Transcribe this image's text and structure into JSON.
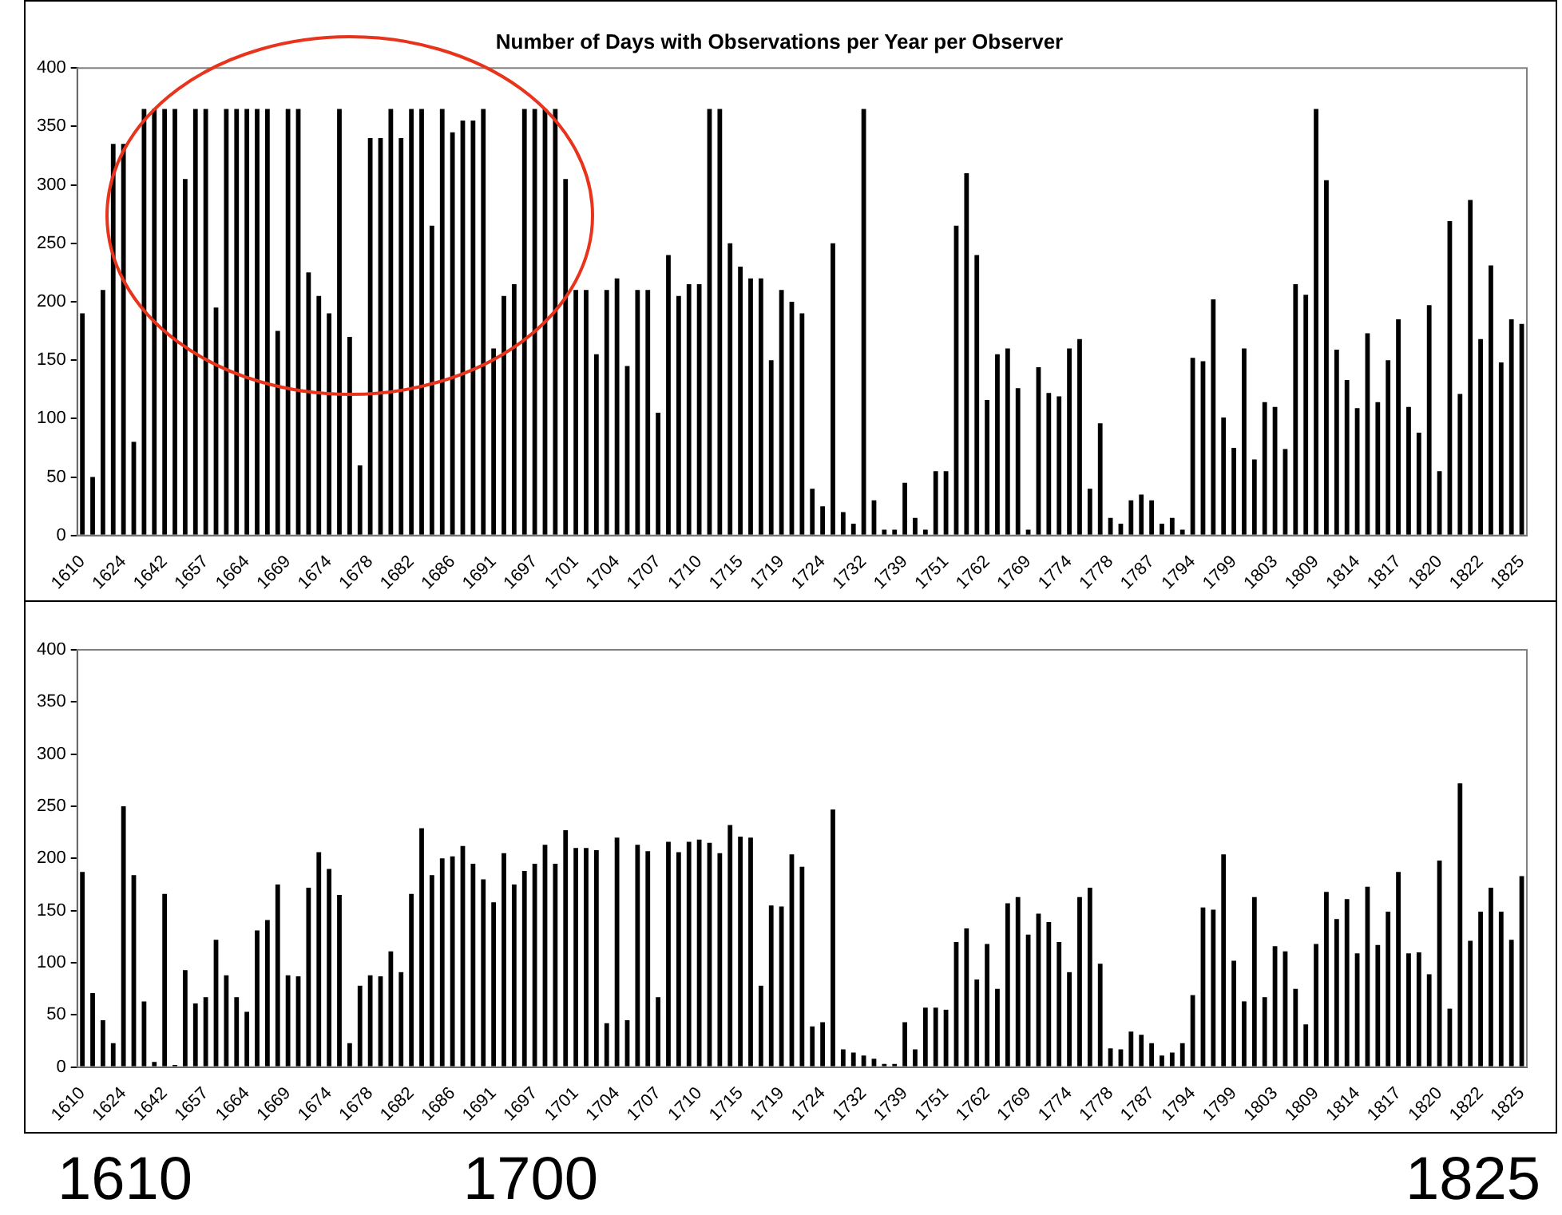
{
  "chart_data": [
    {
      "type": "bar",
      "title": "Number of Days with Observations per Year per Observer",
      "categories": [
        "1610",
        null,
        null,
        null,
        "1624",
        null,
        null,
        null,
        "1642",
        null,
        null,
        null,
        "1657",
        null,
        null,
        null,
        "1664",
        null,
        null,
        null,
        "1669",
        null,
        null,
        null,
        "1674",
        null,
        null,
        null,
        "1678",
        null,
        null,
        null,
        "1682",
        null,
        null,
        null,
        "1686",
        null,
        null,
        null,
        "1691",
        null,
        null,
        null,
        "1697",
        null,
        null,
        null,
        "1701",
        null,
        null,
        null,
        "1704",
        null,
        null,
        null,
        "1707",
        null,
        null,
        null,
        "1710",
        null,
        null,
        null,
        "1715",
        null,
        null,
        null,
        "1719",
        null,
        null,
        null,
        "1724",
        null,
        null,
        null,
        "1732",
        null,
        null,
        null,
        "1739",
        null,
        null,
        null,
        "1751",
        null,
        null,
        null,
        "1762",
        null,
        null,
        null,
        "1769",
        null,
        null,
        null,
        "1774",
        null,
        null,
        null,
        "1778",
        null,
        null,
        null,
        "1787",
        null,
        null,
        null,
        "1794",
        null,
        null,
        null,
        "1799",
        null,
        null,
        null,
        "1803",
        null,
        null,
        null,
        "1809",
        null,
        null,
        null,
        "1814",
        null,
        null,
        null,
        "1817",
        null,
        null,
        null,
        "1820",
        null,
        null,
        null,
        "1822",
        null,
        null,
        null,
        "1825"
      ],
      "values": [
        190,
        50,
        210,
        335,
        335,
        80,
        365,
        365,
        365,
        365,
        305,
        365,
        365,
        195,
        365,
        365,
        365,
        365,
        365,
        175,
        365,
        365,
        225,
        205,
        190,
        365,
        170,
        60,
        340,
        340,
        365,
        340,
        365,
        365,
        265,
        365,
        345,
        355,
        355,
        365,
        160,
        205,
        215,
        365,
        365,
        365,
        365,
        305,
        210,
        210,
        155,
        210,
        220,
        145,
        210,
        210,
        105,
        240,
        205,
        215,
        215,
        365,
        365,
        250,
        230,
        220,
        220,
        150,
        210,
        200,
        190,
        40,
        25,
        250,
        20,
        10,
        365,
        30,
        5,
        5,
        45,
        15,
        5,
        55,
        55,
        265,
        310,
        240,
        116,
        155,
        160,
        126,
        5,
        144,
        122,
        119,
        160,
        168,
        40,
        96,
        15,
        10,
        30,
        35,
        30,
        10,
        15,
        5,
        152,
        149,
        202,
        101,
        75,
        160,
        65,
        114,
        110,
        74,
        215,
        206,
        365,
        304,
        159,
        133,
        109,
        173,
        114,
        150,
        185,
        110,
        88,
        197,
        55,
        269,
        121,
        287,
        168,
        231,
        148,
        185,
        181
      ],
      "color": "#000000",
      "ylim": [
        0,
        400
      ],
      "yticks": [
        0,
        50,
        100,
        150,
        200,
        250,
        300,
        350,
        400
      ],
      "grid": false,
      "legend": false
    },
    {
      "type": "bar",
      "categories": [
        "1610",
        null,
        null,
        null,
        "1624",
        null,
        null,
        null,
        "1642",
        null,
        null,
        null,
        "1657",
        null,
        null,
        null,
        "1664",
        null,
        null,
        null,
        "1669",
        null,
        null,
        null,
        "1674",
        null,
        null,
        null,
        "1678",
        null,
        null,
        null,
        "1682",
        null,
        null,
        null,
        "1686",
        null,
        null,
        null,
        "1691",
        null,
        null,
        null,
        "1697",
        null,
        null,
        null,
        "1701",
        null,
        null,
        null,
        "1704",
        null,
        null,
        null,
        "1707",
        null,
        null,
        null,
        "1710",
        null,
        null,
        null,
        "1715",
        null,
        null,
        null,
        "1719",
        null,
        null,
        null,
        "1724",
        null,
        null,
        null,
        "1732",
        null,
        null,
        null,
        "1739",
        null,
        null,
        null,
        "1751",
        null,
        null,
        null,
        "1762",
        null,
        null,
        null,
        "1769",
        null,
        null,
        null,
        "1774",
        null,
        null,
        null,
        "1778",
        null,
        null,
        null,
        "1787",
        null,
        null,
        null,
        "1794",
        null,
        null,
        null,
        "1799",
        null,
        null,
        null,
        "1803",
        null,
        null,
        null,
        "1809",
        null,
        null,
        null,
        "1814",
        null,
        null,
        null,
        "1817",
        null,
        null,
        null,
        "1820",
        null,
        null,
        null,
        "1822",
        null,
        null,
        null,
        "1825"
      ],
      "values": [
        187,
        71,
        45,
        23,
        250,
        184,
        63,
        5,
        166,
        2,
        93,
        61,
        67,
        122,
        88,
        67,
        53,
        131,
        141,
        175,
        88,
        87,
        172,
        206,
        190,
        165,
        23,
        78,
        88,
        87,
        111,
        91,
        166,
        229,
        184,
        200,
        202,
        212,
        195,
        180,
        158,
        205,
        175,
        188,
        195,
        213,
        195,
        227,
        210,
        210,
        208,
        42,
        220,
        45,
        213,
        207,
        67,
        216,
        206,
        216,
        218,
        215,
        205,
        232,
        221,
        220,
        78,
        155,
        154,
        204,
        192,
        39,
        43,
        247,
        17,
        14,
        11,
        8,
        3,
        3,
        43,
        17,
        57,
        57,
        55,
        120,
        133,
        84,
        118,
        75,
        157,
        163,
        127,
        147,
        139,
        120,
        91,
        163,
        172,
        99,
        18,
        17,
        34,
        31,
        23,
        11,
        14,
        23,
        69,
        153,
        151,
        204,
        102,
        63,
        163,
        67,
        116,
        111,
        75,
        41,
        118,
        168,
        142,
        161,
        109,
        173,
        117,
        149,
        187,
        109,
        110,
        89,
        198,
        56,
        272,
        121,
        149,
        172,
        149,
        122,
        183
      ],
      "color": "#000000",
      "ylim": [
        0,
        400
      ],
      "yticks": [
        0,
        50,
        100,
        150,
        200,
        250,
        300,
        350,
        400
      ],
      "grid": false,
      "legend": false,
      "annotations": [
        "1610",
        "1700",
        "1825"
      ]
    }
  ]
}
